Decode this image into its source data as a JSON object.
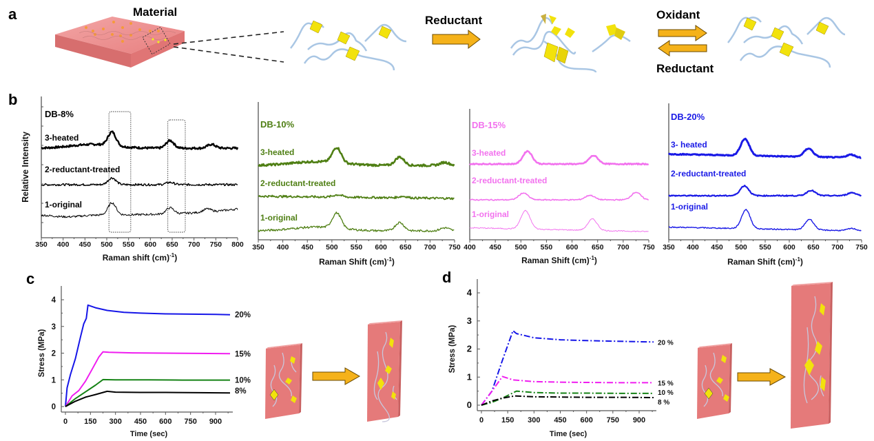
{
  "panel_labels": {
    "a": "a",
    "b": "b",
    "c": "c",
    "d": "d"
  },
  "panel_a": {
    "material_label": "Material",
    "step1_label": "Reductant",
    "step2_forward_label": "Oxidant",
    "step2_reverse_label": "Reductant",
    "colors": {
      "slab": "#e98585",
      "arrow": "#f5b21a",
      "cluster": "#f2e20c",
      "chain": "#a9c6e4"
    }
  },
  "chart_data": [
    {
      "id": "b1",
      "type": "line",
      "title": "DB-8%",
      "xlabel": "Raman shift (cm⁻¹)",
      "ylabel": "Relative Intensity",
      "xlim": [
        350,
        800
      ],
      "xticks": [
        350,
        400,
        450,
        500,
        550,
        600,
        650,
        700,
        750,
        800
      ],
      "color": "#000000",
      "highlight_boxes": [
        [
          505,
          555
        ],
        [
          640,
          680
        ]
      ],
      "series": [
        {
          "name": "3-heated",
          "offset": 2,
          "peaks": [
            [
              512,
              0.9
            ],
            [
              645,
              0.5
            ],
            [
              740,
              0.25
            ]
          ],
          "baseline_shape": "hump-450"
        },
        {
          "name": "2-reductant-treated",
          "offset": 1,
          "peaks": [
            [
              512,
              0.45
            ],
            [
              645,
              0.15
            ]
          ],
          "baseline_shape": "flat"
        },
        {
          "name": "1-original",
          "offset": 0,
          "peaks": [
            [
              512,
              0.8
            ],
            [
              645,
              0.4
            ],
            [
              730,
              0.2
            ]
          ],
          "baseline_shape": "rise-end"
        }
      ]
    },
    {
      "id": "b2",
      "type": "line",
      "title": "DB-10%",
      "xlabel": "Raman Shift (cm⁻¹)",
      "xlim": [
        350,
        750
      ],
      "xticks": [
        350,
        400,
        450,
        500,
        550,
        600,
        650,
        700,
        750
      ],
      "color": "#4f7f14",
      "series": [
        {
          "name": "3-heated",
          "offset": 2,
          "peaks": [
            [
              510,
              1.0
            ],
            [
              638,
              0.55
            ],
            [
              730,
              0.2
            ]
          ],
          "baseline_shape": "hump-450"
        },
        {
          "name": "2-reductant-treated",
          "offset": 1,
          "peaks": [
            [
              512,
              0.15
            ],
            [
              645,
              0.1
            ]
          ],
          "baseline_shape": "slope-down"
        },
        {
          "name": "1-original",
          "offset": 0,
          "peaks": [
            [
              510,
              1.0
            ],
            [
              638,
              0.55
            ],
            [
              730,
              0.2
            ]
          ],
          "baseline_shape": "hump-450"
        }
      ]
    },
    {
      "id": "b3",
      "type": "line",
      "title": "DB-15%",
      "xlabel": "Raman Shift (cm⁻¹)",
      "xlim": [
        400,
        750
      ],
      "xticks": [
        400,
        450,
        500,
        550,
        600,
        650,
        700,
        750
      ],
      "color": "#f272ee",
      "series": [
        {
          "name": "3-heated",
          "offset": 2,
          "peaks": [
            [
              513,
              0.85
            ],
            [
              642,
              0.55
            ]
          ],
          "baseline_shape": "flat"
        },
        {
          "name": "2-reductant-treated",
          "offset": 1,
          "peaks": [
            [
              505,
              0.45
            ],
            [
              635,
              0.3
            ],
            [
              725,
              0.5
            ]
          ],
          "baseline_shape": "flat"
        },
        {
          "name": "1-original",
          "offset": 0,
          "peaks": [
            [
              509,
              1.2
            ],
            [
              640,
              0.75
            ]
          ],
          "baseline_shape": "decay"
        }
      ]
    },
    {
      "id": "b4",
      "type": "line",
      "title": "DB-20%",
      "xlabel": "Raman Shift (cm⁻¹)",
      "xlim": [
        350,
        750
      ],
      "xticks": [
        350,
        400,
        450,
        500,
        550,
        600,
        650,
        700,
        750
      ],
      "color": "#1a1ae6",
      "series": [
        {
          "name": "3- heated",
          "offset": 2,
          "peaks": [
            [
              508,
              1.1
            ],
            [
              640,
              0.55
            ],
            [
              728,
              0.2
            ]
          ],
          "baseline_shape": "decay"
        },
        {
          "name": "2-reductant-treated",
          "offset": 1,
          "peaks": [
            [
              507,
              0.65
            ],
            [
              645,
              0.35
            ],
            [
              730,
              0.2
            ]
          ],
          "baseline_shape": "flat"
        },
        {
          "name": "1-original",
          "offset": 0,
          "peaks": [
            [
              510,
              1.25
            ],
            [
              642,
              0.7
            ],
            [
              730,
              0.15
            ]
          ],
          "baseline_shape": "decay"
        }
      ]
    },
    {
      "id": "c",
      "type": "line",
      "title": "",
      "xlabel": "Time (sec)",
      "ylabel": "Stress (MPa)",
      "xlim": [
        0,
        1000
      ],
      "ylim": [
        0,
        4.4
      ],
      "xticks": [
        0,
        150,
        300,
        450,
        600,
        750,
        900
      ],
      "yticks": [
        0,
        1,
        2,
        3,
        4
      ],
      "line_style": "solid",
      "series": [
        {
          "name": "20%",
          "color": "#1515e8",
          "x": [
            0,
            10,
            30,
            60,
            90,
            110,
            125,
            135,
            180,
            250,
            350,
            450,
            600,
            750,
            900,
            1000
          ],
          "y": [
            0,
            0.7,
            1.2,
            1.8,
            2.6,
            3.1,
            3.3,
            3.8,
            3.7,
            3.6,
            3.53,
            3.5,
            3.47,
            3.46,
            3.45,
            3.44
          ]
        },
        {
          "name": "15%",
          "color": "#f01cf0",
          "x": [
            0,
            40,
            80,
            120,
            160,
            200,
            225,
            260,
            400,
            600,
            800,
            1000
          ],
          "y": [
            0,
            0.4,
            0.6,
            0.95,
            1.4,
            1.85,
            2.05,
            2.03,
            2.01,
            2.0,
            1.99,
            1.98
          ]
        },
        {
          "name": "10%",
          "color": "#148214",
          "x": [
            0,
            60,
            120,
            180,
            225,
            300,
            500,
            700,
            1000
          ],
          "y": [
            0,
            0.3,
            0.55,
            0.8,
            1.01,
            1.0,
            1.0,
            0.99,
            0.99
          ]
        },
        {
          "name": "8%",
          "color": "#000000",
          "x": [
            0,
            60,
            120,
            180,
            250,
            300,
            450,
            600,
            800,
            1000
          ],
          "y": [
            0,
            0.2,
            0.35,
            0.45,
            0.57,
            0.54,
            0.53,
            0.53,
            0.52,
            0.51
          ]
        }
      ]
    },
    {
      "id": "d",
      "type": "line",
      "title": "",
      "xlabel": "Time (sec)",
      "ylabel": "Stress (MPa)",
      "xlim": [
        0,
        1000
      ],
      "ylim": [
        0,
        4.4
      ],
      "xticks": [
        0,
        150,
        300,
        450,
        600,
        750,
        900
      ],
      "yticks": [
        0,
        1,
        2,
        3,
        4
      ],
      "line_style": "dash-dot",
      "series": [
        {
          "name": "20 %",
          "color": "#1515e8",
          "x": [
            0,
            60,
            120,
            180,
            200,
            300,
            450,
            600,
            750,
            900,
            1000
          ],
          "y": [
            0,
            0.5,
            1.6,
            2.65,
            2.55,
            2.4,
            2.33,
            2.3,
            2.28,
            2.26,
            2.25
          ]
        },
        {
          "name": "15 %",
          "color": "#f01cf0",
          "x": [
            0,
            60,
            120,
            180,
            300,
            450,
            600,
            800,
            1000
          ],
          "y": [
            0,
            0.5,
            1.02,
            0.9,
            0.84,
            0.82,
            0.81,
            0.8,
            0.8
          ]
        },
        {
          "name": "10 %",
          "color": "#148214",
          "x": [
            0,
            60,
            120,
            200,
            300,
            450,
            600,
            800,
            1000
          ],
          "y": [
            0,
            0.1,
            0.25,
            0.5,
            0.45,
            0.43,
            0.43,
            0.42,
            0.42
          ]
        },
        {
          "name": "8 %",
          "color": "#000000",
          "x": [
            0,
            60,
            120,
            190,
            300,
            450,
            600,
            800,
            1000
          ],
          "y": [
            0,
            0.15,
            0.25,
            0.33,
            0.3,
            0.29,
            0.28,
            0.28,
            0.27
          ]
        }
      ]
    }
  ]
}
